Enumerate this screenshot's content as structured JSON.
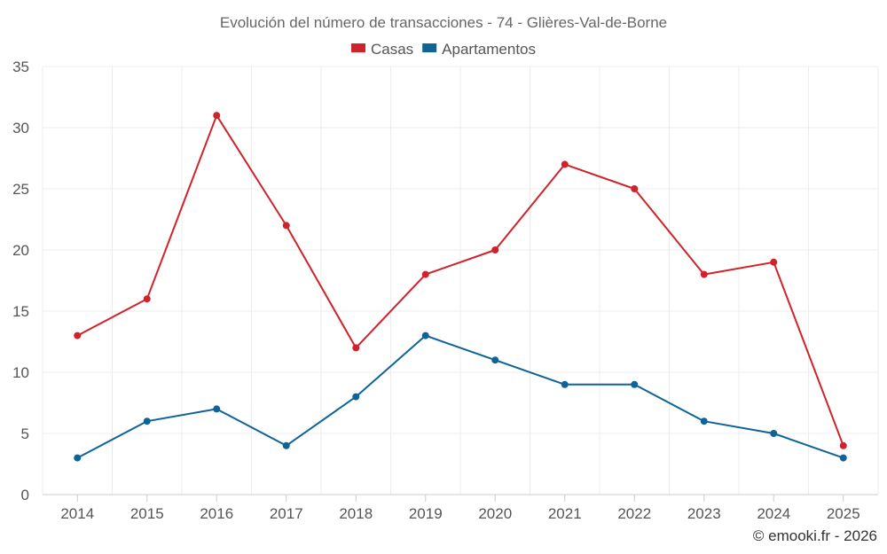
{
  "chart_data": {
    "type": "line",
    "title": "Evolución del número de transacciones - 74 - Glières-Val-de-Borne",
    "categories": [
      "2014",
      "2015",
      "2016",
      "2017",
      "2018",
      "2019",
      "2020",
      "2021",
      "2022",
      "2023",
      "2024",
      "2025"
    ],
    "series": [
      {
        "name": "Casas",
        "color": "#d0222a",
        "values": [
          13,
          16,
          31,
          22,
          12,
          18,
          20,
          27,
          25,
          18,
          19,
          4
        ]
      },
      {
        "name": "Apartamentos",
        "color": "#0e6397",
        "values": [
          3,
          6,
          7,
          4,
          8,
          13,
          11,
          9,
          9,
          6,
          5,
          3
        ]
      }
    ],
    "ylim": [
      0,
      35
    ],
    "yticks": [
      0,
      5,
      10,
      15,
      20,
      25,
      30,
      35
    ],
    "xlabel": "",
    "ylabel": "",
    "grid": true,
    "legend_position": "top-center"
  },
  "credit": "© emooki.fr - 2026"
}
